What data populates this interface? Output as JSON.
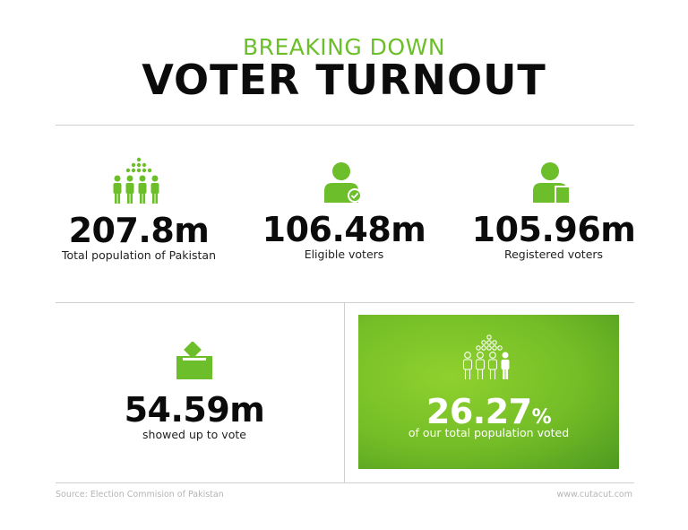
{
  "header": {
    "kicker": "BREAKING DOWN",
    "title": "VOTER TURNOUT"
  },
  "stats": {
    "population": {
      "value": "207.8m",
      "caption": "Total population of Pakistan",
      "icon": "crowd-icon"
    },
    "eligible": {
      "value": "106.48m",
      "caption": "Eligible voters",
      "icon": "user-check-icon"
    },
    "registered": {
      "value": "105.96m",
      "caption": "Registered voters",
      "icon": "user-card-icon"
    },
    "showed_up": {
      "value": "54.59m",
      "caption": "showed up to vote",
      "icon": "ballot-box-icon"
    },
    "turnout": {
      "value": "26.27",
      "suffix": "%",
      "caption": "of our total population voted",
      "icon": "crowd-outline-icon"
    }
  },
  "footer": {
    "source": "Source: Election Commision of Pakistan",
    "site": "www.cutacut.com"
  },
  "colors": {
    "accent": "#6cbf2a",
    "text": "#0b0b0b",
    "panel": "#74bd27"
  }
}
